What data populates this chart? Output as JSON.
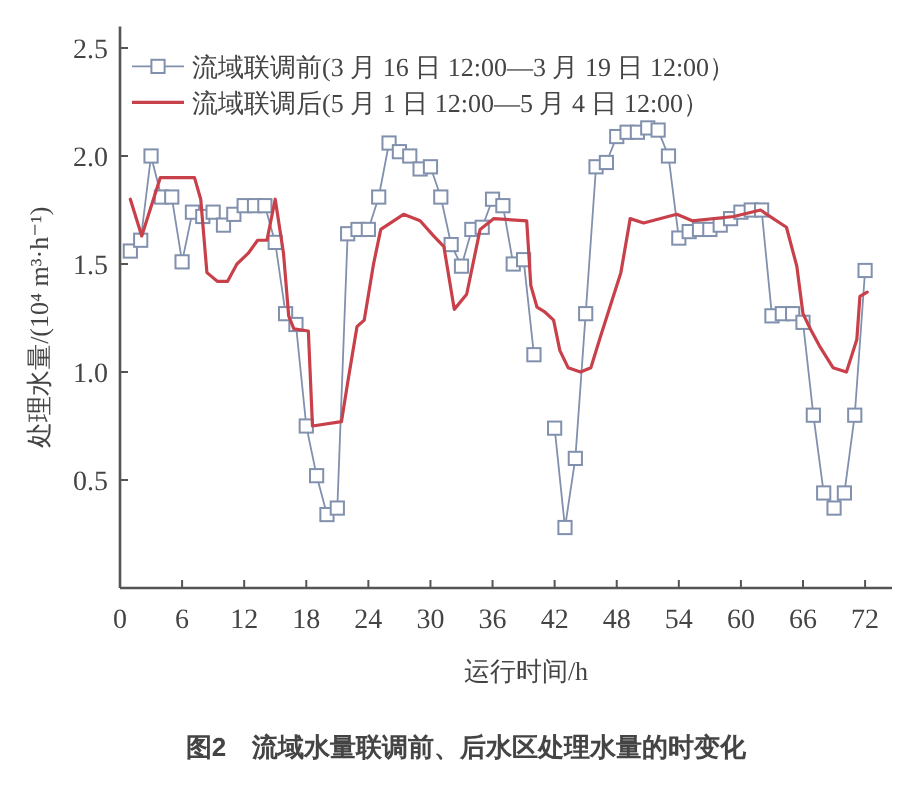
{
  "chart_data": {
    "type": "line",
    "xlabel": "运行时间/h",
    "ylabel": "处理水量/(10⁴ m³·h⁻¹)",
    "annotations": [
      "图2　流域水量联调前、后水区处理水量的时变化"
    ],
    "xlim": [
      0,
      74.6
    ],
    "ylim": [
      0,
      2.6
    ],
    "xticks": [
      0,
      6,
      12,
      18,
      24,
      30,
      36,
      42,
      48,
      54,
      60,
      66,
      72
    ],
    "yticks": [
      0.5,
      {
        "value": 1,
        "label": "1.0"
      },
      1.5,
      {
        "value": 2,
        "label": "2.0"
      },
      2.5
    ],
    "legend": "top left",
    "series": [
      {
        "name": "流域联调前(3 月 16 日 12:00—3 月 19 日 12:00）",
        "color": "#8190ad",
        "marker": "square",
        "x": [
          1,
          2,
          3,
          4,
          5,
          6,
          7,
          8,
          9,
          10,
          11,
          12,
          13,
          14,
          15,
          16,
          17,
          18,
          19,
          20,
          21,
          22,
          23,
          24,
          25,
          26,
          27,
          28,
          29,
          30,
          31,
          32,
          33,
          34,
          35,
          36,
          37,
          38,
          39,
          40,
          41,
          42,
          43,
          44,
          45,
          46,
          47,
          48,
          49,
          50,
          51,
          52,
          53,
          54,
          55,
          56,
          57,
          58,
          59,
          60,
          61,
          62,
          63,
          64,
          65,
          66,
          67,
          68,
          69,
          70,
          71,
          72
        ],
        "values": [
          1.56,
          1.61,
          2.0,
          1.81,
          1.81,
          1.51,
          1.74,
          1.72,
          1.74,
          1.68,
          1.73,
          1.77,
          1.77,
          1.77,
          1.6,
          1.27,
          1.22,
          0.75,
          0.52,
          0.34,
          0.37,
          1.64,
          1.66,
          1.66,
          1.81,
          2.06,
          2.02,
          2.0,
          1.94,
          1.95,
          1.81,
          1.59,
          1.49,
          1.66,
          1.67,
          1.8,
          1.77,
          1.5,
          1.52,
          1.08,
          null,
          0.74,
          0.28,
          0.6,
          1.27,
          1.95,
          1.97,
          2.09,
          2.11,
          2.11,
          2.13,
          2.12,
          2.0,
          1.62,
          1.65,
          1.66,
          1.66,
          1.68,
          1.71,
          1.74,
          1.75,
          1.75,
          1.26,
          1.27,
          1.27,
          1.23,
          0.8,
          0.44,
          0.37,
          0.44,
          0.8,
          1.47
        ]
      },
      {
        "name": "流域联调后(5 月 1 日 12:00—5 月 4 日 12:00）",
        "color": "#c8404a",
        "marker": "none",
        "x": [
          1.0,
          2.1,
          3.9,
          7.2,
          7.8,
          8.4,
          9.4,
          10.4,
          11.3,
          12.4,
          13.3,
          14.2,
          15.0,
          15.8,
          16.3,
          16.8,
          18.2,
          18.6,
          21.4,
          22.0,
          22.9,
          23.6,
          24.5,
          25.2,
          27.4,
          29.0,
          30.3,
          31.3,
          32.3,
          33.5,
          34.8,
          36.1,
          39.3,
          39.7,
          40.3,
          41.0,
          41.9,
          42.5,
          43.3,
          44.5,
          45.5,
          46.4,
          48.4,
          49.3,
          50.6,
          53.8,
          55.3,
          59.3,
          61.9,
          62.5,
          64.4,
          65.4,
          66.0,
          66.7,
          67.6,
          68.9,
          70.2,
          71.2,
          71.5,
          72.2
        ],
        "values": [
          1.8,
          1.63,
          1.9,
          1.9,
          1.8,
          1.46,
          1.42,
          1.42,
          1.5,
          1.55,
          1.61,
          1.61,
          1.8,
          1.55,
          1.26,
          1.2,
          1.19,
          0.75,
          0.77,
          0.95,
          1.21,
          1.24,
          1.5,
          1.66,
          1.73,
          1.7,
          1.63,
          1.58,
          1.29,
          1.36,
          1.66,
          1.71,
          1.7,
          1.4,
          1.3,
          1.28,
          1.24,
          1.1,
          1.02,
          1.0,
          1.02,
          1.16,
          1.46,
          1.71,
          1.69,
          1.73,
          1.7,
          1.72,
          1.75,
          1.73,
          1.67,
          1.49,
          1.27,
          1.2,
          1.12,
          1.02,
          1.0,
          1.15,
          1.35,
          1.37
        ]
      }
    ]
  }
}
